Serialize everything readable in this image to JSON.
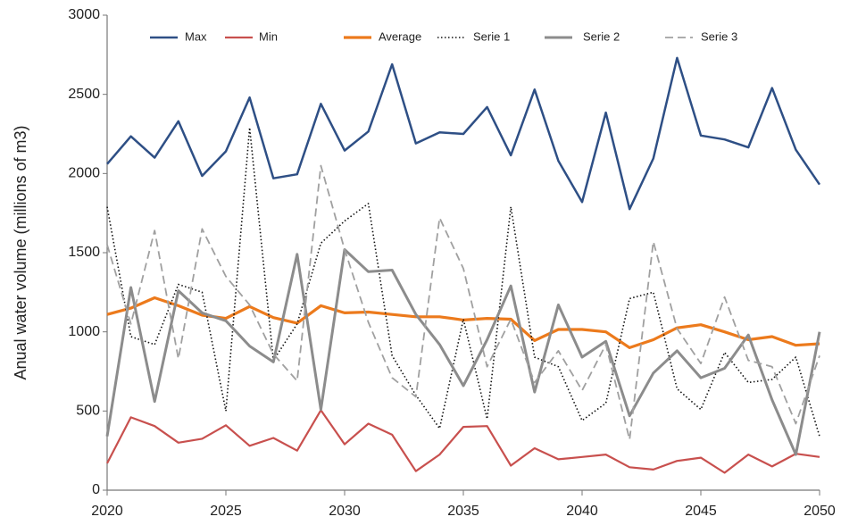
{
  "chart_data": {
    "type": "line",
    "ylabel": "Anual water volume (millions of m3)",
    "x": [
      2020,
      2021,
      2022,
      2023,
      2024,
      2025,
      2026,
      2027,
      2028,
      2029,
      2030,
      2031,
      2032,
      2033,
      2034,
      2035,
      2036,
      2037,
      2038,
      2039,
      2040,
      2041,
      2042,
      2043,
      2044,
      2045,
      2046,
      2047,
      2048,
      2049,
      2050
    ],
    "xlim": [
      2020,
      2050
    ],
    "xticks": [
      2020,
      2025,
      2030,
      2035,
      2040,
      2045,
      2050
    ],
    "ylim": [
      0,
      3000
    ],
    "yticks": [
      0,
      500,
      1000,
      1500,
      2000,
      2500,
      3000
    ],
    "grid": false,
    "legend": "top",
    "series": [
      {
        "name": "Max",
        "color": "#2e4f85",
        "dash": "solid",
        "values": [
          2060,
          2235,
          2100,
          2330,
          1985,
          2140,
          2480,
          1970,
          1995,
          2440,
          2145,
          2265,
          2690,
          2190,
          2260,
          2250,
          2420,
          2115,
          2530,
          2080,
          1820,
          2385,
          1775,
          2095,
          2730,
          2240,
          2215,
          2165,
          2540,
          2150,
          1930
        ]
      },
      {
        "name": "Min",
        "color": "#c8504e",
        "dash": "solid",
        "values": [
          170,
          460,
          405,
          300,
          325,
          410,
          280,
          330,
          250,
          505,
          290,
          420,
          350,
          120,
          225,
          400,
          405,
          155,
          265,
          195,
          210,
          225,
          145,
          130,
          185,
          205,
          110,
          225,
          150,
          230,
          210
        ]
      },
      {
        "name": "Average",
        "color": "#ec7a1c",
        "dash": "solid",
        "values": [
          1110,
          1150,
          1215,
          1165,
          1105,
          1085,
          1160,
          1090,
          1055,
          1165,
          1120,
          1125,
          1110,
          1095,
          1095,
          1075,
          1085,
          1080,
          945,
          1015,
          1015,
          1000,
          900,
          950,
          1025,
          1045,
          1000,
          950,
          970,
          915,
          925
        ]
      },
      {
        "name": "Serie 1",
        "color": "#111111",
        "dash": "dotted",
        "values": [
          1790,
          970,
          920,
          1300,
          1250,
          500,
          2290,
          820,
          1050,
          1560,
          1700,
          1810,
          850,
          600,
          390,
          1080,
          450,
          1790,
          840,
          780,
          440,
          550,
          1210,
          1250,
          640,
          510,
          870,
          680,
          700,
          840,
          340
        ]
      },
      {
        "name": "Serie 2",
        "color": "#8c8c8c",
        "dash": "solid",
        "values": [
          340,
          1280,
          560,
          1260,
          1120,
          1070,
          910,
          810,
          1490,
          510,
          1520,
          1380,
          1390,
          1110,
          920,
          660,
          950,
          1290,
          620,
          1170,
          840,
          940,
          470,
          740,
          880,
          710,
          770,
          980,
          570,
          225,
          1000
        ]
      },
      {
        "name": "Serie 3",
        "color": "#a0a0a0",
        "dash": "dashed",
        "values": [
          1550,
          1050,
          1640,
          830,
          1650,
          1350,
          1170,
          860,
          690,
          2050,
          1520,
          1060,
          710,
          590,
          1720,
          1400,
          780,
          1080,
          680,
          880,
          630,
          920,
          320,
          1570,
          1020,
          800,
          1220,
          820,
          780,
          420,
          850
        ]
      }
    ]
  }
}
